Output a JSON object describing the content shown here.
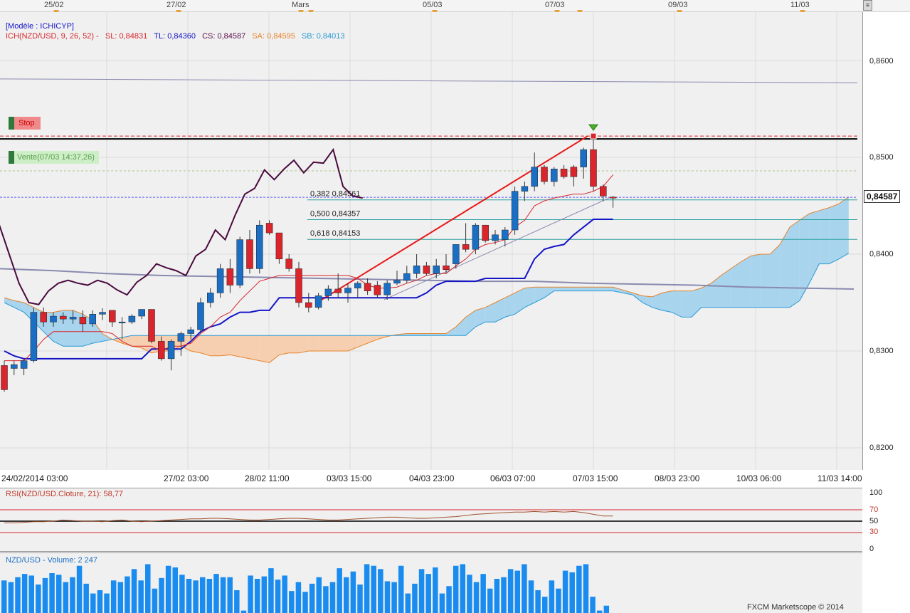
{
  "top_dates": [
    "25/02",
    "27/02",
    "Mars",
    "05/03",
    "07/03",
    "09/03",
    "11/03"
  ],
  "chart_header": {
    "model": "[Modèle : ICHICYP]",
    "ich": "ICH(NZD/USD, 9, 26, 52) -",
    "sl": "SL: 0,84831",
    "tl": "TL: 0,84360",
    "cs": "CS: 0,84587",
    "sa": "SA: 0,84595",
    "sb": "SB: 0,84013"
  },
  "order_labels": {
    "stop": "Stop",
    "sell": "Vente(07/03 14:37,26)"
  },
  "fib_labels": [
    "0,382 0,84561",
    "0,500 0,84357",
    "0,618 0,84153"
  ],
  "price_axis": [
    "0,8600",
    "0,8500",
    "0,8400",
    "0,8300",
    "0,8200"
  ],
  "current_price": "0,84587",
  "time_axis": [
    "24/02/2014 03:00",
    "27/02 03:00",
    "28/02 11:00",
    "03/03 15:00",
    "04/03 23:00",
    "06/03 07:00",
    "07/03 15:00",
    "08/03 23:00",
    "10/03 06:00",
    "11/03 14:00"
  ],
  "rsi_header": "RSI(NZD/USD.Cloture, 21): 58,77",
  "rsi_axis": [
    "100",
    "70",
    "50",
    "30",
    "0"
  ],
  "volume_header": "NZD/USD - Volume: 2 247",
  "footer": "FXCM Marketscope © 2014",
  "colors": {
    "bull": "#1a6fc4",
    "bear": "#d9252b",
    "tenkan": "#d9252b",
    "kijun": "#1515c8",
    "chikou": "#4a0a3e",
    "cloud": "#a8d4ee",
    "cloud_bear": "#f5cfb0"
  },
  "chart_data": {
    "type": "candlestick",
    "symbol": "NZD/USD",
    "ylim": [
      0.819,
      0.8625
    ],
    "candles": [
      {
        "o": 0.8285,
        "h": 0.829,
        "l": 0.8258,
        "c": 0.826
      },
      {
        "o": 0.8282,
        "h": 0.829,
        "l": 0.8275,
        "c": 0.8286
      },
      {
        "o": 0.8282,
        "h": 0.8292,
        "l": 0.8275,
        "c": 0.829
      },
      {
        "o": 0.829,
        "h": 0.8345,
        "l": 0.8288,
        "c": 0.834
      },
      {
        "o": 0.834,
        "h": 0.8345,
        "l": 0.8325,
        "c": 0.833
      },
      {
        "o": 0.833,
        "h": 0.834,
        "l": 0.8325,
        "c": 0.8336
      },
      {
        "o": 0.8336,
        "h": 0.834,
        "l": 0.8328,
        "c": 0.8333
      },
      {
        "o": 0.8333,
        "h": 0.8342,
        "l": 0.8328,
        "c": 0.8335
      },
      {
        "o": 0.8335,
        "h": 0.8342,
        "l": 0.832,
        "c": 0.8328
      },
      {
        "o": 0.8328,
        "h": 0.8342,
        "l": 0.8325,
        "c": 0.8338
      },
      {
        "o": 0.8338,
        "h": 0.8344,
        "l": 0.8332,
        "c": 0.834
      },
      {
        "o": 0.8342,
        "h": 0.8342,
        "l": 0.8325,
        "c": 0.833
      },
      {
        "o": 0.833,
        "h": 0.8335,
        "l": 0.8312,
        "c": 0.833
      },
      {
        "o": 0.833,
        "h": 0.8338,
        "l": 0.8328,
        "c": 0.8336
      },
      {
        "o": 0.8336,
        "h": 0.8343,
        "l": 0.8333,
        "c": 0.8343
      },
      {
        "o": 0.8343,
        "h": 0.8343,
        "l": 0.8308,
        "c": 0.831
      },
      {
        "o": 0.831,
        "h": 0.8315,
        "l": 0.829,
        "c": 0.8292
      },
      {
        "o": 0.8292,
        "h": 0.8312,
        "l": 0.828,
        "c": 0.831
      },
      {
        "o": 0.831,
        "h": 0.832,
        "l": 0.8295,
        "c": 0.8318
      },
      {
        "o": 0.8318,
        "h": 0.8325,
        "l": 0.8312,
        "c": 0.8322
      },
      {
        "o": 0.8322,
        "h": 0.8355,
        "l": 0.8318,
        "c": 0.835
      },
      {
        "o": 0.835,
        "h": 0.8365,
        "l": 0.8345,
        "c": 0.836
      },
      {
        "o": 0.836,
        "h": 0.839,
        "l": 0.8355,
        "c": 0.8385
      },
      {
        "o": 0.8385,
        "h": 0.8395,
        "l": 0.836,
        "c": 0.8368
      },
      {
        "o": 0.8368,
        "h": 0.8418,
        "l": 0.8365,
        "c": 0.8415
      },
      {
        "o": 0.8415,
        "h": 0.8425,
        "l": 0.838,
        "c": 0.8385
      },
      {
        "o": 0.8385,
        "h": 0.8435,
        "l": 0.838,
        "c": 0.843
      },
      {
        "o": 0.8432,
        "h": 0.8435,
        "l": 0.842,
        "c": 0.8422
      },
      {
        "o": 0.8422,
        "h": 0.8422,
        "l": 0.839,
        "c": 0.8395
      },
      {
        "o": 0.8395,
        "h": 0.84,
        "l": 0.8382,
        "c": 0.8385
      },
      {
        "o": 0.8385,
        "h": 0.8392,
        "l": 0.8345,
        "c": 0.835
      },
      {
        "o": 0.835,
        "h": 0.836,
        "l": 0.834,
        "c": 0.8345
      },
      {
        "o": 0.8345,
        "h": 0.836,
        "l": 0.8343,
        "c": 0.8357
      },
      {
        "o": 0.8357,
        "h": 0.8368,
        "l": 0.8352,
        "c": 0.8364
      },
      {
        "o": 0.8364,
        "h": 0.838,
        "l": 0.8355,
        "c": 0.836
      },
      {
        "o": 0.836,
        "h": 0.837,
        "l": 0.835,
        "c": 0.8365
      },
      {
        "o": 0.8365,
        "h": 0.8372,
        "l": 0.8355,
        "c": 0.837
      },
      {
        "o": 0.837,
        "h": 0.8375,
        "l": 0.8358,
        "c": 0.8362
      },
      {
        "o": 0.8368,
        "h": 0.8372,
        "l": 0.8355,
        "c": 0.8358
      },
      {
        "o": 0.8358,
        "h": 0.8373,
        "l": 0.8353,
        "c": 0.837
      },
      {
        "o": 0.837,
        "h": 0.8383,
        "l": 0.8368,
        "c": 0.8373
      },
      {
        "o": 0.8373,
        "h": 0.8388,
        "l": 0.837,
        "c": 0.838
      },
      {
        "o": 0.838,
        "h": 0.84,
        "l": 0.8375,
        "c": 0.8388
      },
      {
        "o": 0.8388,
        "h": 0.8392,
        "l": 0.8378,
        "c": 0.838
      },
      {
        "o": 0.838,
        "h": 0.8395,
        "l": 0.8375,
        "c": 0.8388
      },
      {
        "o": 0.8388,
        "h": 0.84,
        "l": 0.838,
        "c": 0.8384
      },
      {
        "o": 0.839,
        "h": 0.841,
        "l": 0.8385,
        "c": 0.841
      },
      {
        "o": 0.841,
        "h": 0.8432,
        "l": 0.8402,
        "c": 0.8405
      },
      {
        "o": 0.8405,
        "h": 0.8432,
        "l": 0.84,
        "c": 0.843
      },
      {
        "o": 0.843,
        "h": 0.843,
        "l": 0.8412,
        "c": 0.8414
      },
      {
        "o": 0.8414,
        "h": 0.8425,
        "l": 0.841,
        "c": 0.842
      },
      {
        "o": 0.8415,
        "h": 0.8428,
        "l": 0.8408,
        "c": 0.8425
      },
      {
        "o": 0.8425,
        "h": 0.847,
        "l": 0.842,
        "c": 0.8465
      },
      {
        "o": 0.8465,
        "h": 0.8475,
        "l": 0.8455,
        "c": 0.847
      },
      {
        "o": 0.847,
        "h": 0.8505,
        "l": 0.8465,
        "c": 0.849
      },
      {
        "o": 0.849,
        "h": 0.8492,
        "l": 0.8472,
        "c": 0.8475
      },
      {
        "o": 0.8475,
        "h": 0.849,
        "l": 0.847,
        "c": 0.8488
      },
      {
        "o": 0.8488,
        "h": 0.8492,
        "l": 0.8478,
        "c": 0.848
      },
      {
        "o": 0.849,
        "h": 0.8492,
        "l": 0.847,
        "c": 0.848
      },
      {
        "o": 0.849,
        "h": 0.851,
        "l": 0.8478,
        "c": 0.8508
      },
      {
        "o": 0.8508,
        "h": 0.8522,
        "l": 0.8465,
        "c": 0.847
      },
      {
        "o": 0.847,
        "h": 0.8472,
        "l": 0.8455,
        "c": 0.846
      },
      {
        "o": 0.8459,
        "h": 0.846,
        "l": 0.8448,
        "c": 0.8458
      }
    ],
    "tenkan": [
      0.829,
      0.829,
      0.829,
      0.83,
      0.8312,
      0.832,
      0.832,
      0.832,
      0.832,
      0.832,
      0.832,
      0.8318,
      0.831,
      0.8305,
      0.8305,
      0.8305,
      0.83,
      0.8305,
      0.8305,
      0.8308,
      0.8318,
      0.8325,
      0.8335,
      0.834,
      0.8352,
      0.8362,
      0.8372,
      0.8375,
      0.8378,
      0.8378,
      0.8378,
      0.8378,
      0.8378,
      0.8378,
      0.8378,
      0.8378,
      0.8375,
      0.8368,
      0.8365,
      0.8365,
      0.8366,
      0.837,
      0.8373,
      0.8378,
      0.838,
      0.838,
      0.8388,
      0.8395,
      0.8405,
      0.841,
      0.8412,
      0.8415,
      0.8428,
      0.8435,
      0.845,
      0.8455,
      0.8458,
      0.846,
      0.8462,
      0.8462,
      0.8465,
      0.847,
      0.8482
    ],
    "kijun": [
      0.83,
      0.8295,
      0.8292,
      0.8292,
      0.8292,
      0.8292,
      0.8292,
      0.8292,
      0.8292,
      0.8292,
      0.8292,
      0.8292,
      0.8292,
      0.8292,
      0.8292,
      0.8302,
      0.8302,
      0.8302,
      0.8302,
      0.831,
      0.832,
      0.8325,
      0.8328,
      0.8335,
      0.834,
      0.834,
      0.8342,
      0.8342,
      0.8355,
      0.8355,
      0.8355,
      0.8355,
      0.8355,
      0.8355,
      0.8355,
      0.8355,
      0.8355,
      0.8355,
      0.8355,
      0.8355,
      0.8355,
      0.8355,
      0.8355,
      0.836,
      0.8368,
      0.8372,
      0.8372,
      0.8372,
      0.8372,
      0.8375,
      0.8375,
      0.8375,
      0.8375,
      0.8375,
      0.8395,
      0.8405,
      0.8408,
      0.841,
      0.842,
      0.8428,
      0.8436,
      0.8436,
      0.8436
    ],
    "chikou": [
      0.843,
      0.84,
      0.837,
      0.835,
      0.8348,
      0.8362,
      0.837,
      0.8373,
      0.837,
      0.8368,
      0.8373,
      0.837,
      0.8363,
      0.8358,
      0.8371,
      0.8378,
      0.839,
      0.8386,
      0.8383,
      0.8378,
      0.8398,
      0.8405,
      0.8425,
      0.8415,
      0.844,
      0.8462,
      0.8468,
      0.8487,
      0.8477,
      0.8488,
      0.8497,
      0.8484,
      0.8495,
      0.8494,
      0.8508,
      0.847,
      0.846,
      0.8458
    ],
    "senkou_a": [
      0.8355,
      0.8352,
      0.835,
      0.8345,
      0.834,
      0.834,
      0.8342,
      0.8342,
      0.8338,
      0.8332,
      0.8318,
      0.8312,
      0.8308,
      0.8305,
      0.8303,
      0.8298,
      0.83,
      0.83,
      0.8305,
      0.83,
      0.8298,
      0.8295,
      0.8295,
      0.8296,
      0.8294,
      0.8292,
      0.829,
      0.8288,
      0.8296,
      0.8298,
      0.8298,
      0.83,
      0.83,
      0.83,
      0.83,
      0.83,
      0.8304,
      0.8308,
      0.8312,
      0.8315,
      0.8317,
      0.8318,
      0.8318,
      0.8318,
      0.8318,
      0.8318,
      0.8325,
      0.8335,
      0.8342,
      0.8345,
      0.835,
      0.8355,
      0.836,
      0.8365,
      0.8366,
      0.8366,
      0.8366,
      0.8366,
      0.8366,
      0.8366,
      0.8366,
      0.8366,
      0.8366,
      0.8363,
      0.836,
      0.8357,
      0.8356,
      0.836,
      0.8362,
      0.8362,
      0.8362,
      0.8365,
      0.837,
      0.8378,
      0.8385,
      0.8392,
      0.8398,
      0.84,
      0.84,
      0.841,
      0.8428,
      0.8435,
      0.8442,
      0.8445,
      0.8448,
      0.8452,
      0.8459
    ],
    "senkou_b": [
      0.835,
      0.8345,
      0.834,
      0.833,
      0.832,
      0.831,
      0.8305,
      0.8305,
      0.8305,
      0.8308,
      0.831,
      0.8312,
      0.8314,
      0.8316,
      0.8316,
      0.8316,
      0.8316,
      0.8316,
      0.8316,
      0.8316,
      0.8316,
      0.8316,
      0.8316,
      0.8316,
      0.8316,
      0.8316,
      0.8316,
      0.8316,
      0.8316,
      0.8316,
      0.8316,
      0.8316,
      0.8316,
      0.8316,
      0.8316,
      0.8316,
      0.8316,
      0.8316,
      0.8316,
      0.8316,
      0.8316,
      0.8316,
      0.8316,
      0.8316,
      0.8316,
      0.8316,
      0.8316,
      0.8316,
      0.8325,
      0.833,
      0.833,
      0.8335,
      0.8338,
      0.8345,
      0.835,
      0.8355,
      0.8362,
      0.8362,
      0.8362,
      0.8362,
      0.8362,
      0.8362,
      0.8362,
      0.836,
      0.8358,
      0.835,
      0.8345,
      0.8342,
      0.834,
      0.8335,
      0.8335,
      0.8345,
      0.8345,
      0.8345,
      0.8345,
      0.8345,
      0.8345,
      0.8345,
      0.8345,
      0.8345,
      0.8345,
      0.8352,
      0.837,
      0.839,
      0.839,
      0.8395,
      0.8401
    ],
    "ma_line_a": [
      0.8385,
      0.8383,
      0.838,
      0.8378,
      0.8377,
      0.8376,
      0.8375,
      0.8374,
      0.8373,
      0.8372,
      0.8372,
      0.837,
      0.8369,
      0.8368,
      0.8366,
      0.8365,
      0.8364
    ],
    "stop_level": 0.8522,
    "sell_level": 0.8486,
    "entry_level": 0.8519,
    "fib_levels": [
      0.84561,
      0.84357,
      0.84153
    ],
    "rsi": [
      47,
      47,
      48,
      49,
      49,
      50,
      52,
      51,
      50,
      50,
      49,
      51,
      52,
      50,
      49,
      50,
      51,
      52,
      53,
      54,
      54,
      55,
      55,
      54,
      53,
      52,
      52,
      53,
      54,
      55,
      55,
      54,
      53,
      52,
      52,
      53,
      54,
      55,
      56,
      57,
      57,
      56,
      55,
      55,
      56,
      57,
      58,
      60,
      62,
      63,
      64,
      65,
      66,
      66,
      67,
      66,
      67,
      66,
      67,
      65,
      62,
      59,
      59
    ],
    "volume": [
      40,
      38,
      44,
      48,
      46,
      35,
      43,
      49,
      47,
      38,
      44,
      58,
      36,
      24,
      28,
      24,
      40,
      38,
      45,
      54,
      40,
      60,
      30,
      43,
      58,
      56,
      47,
      42,
      40,
      44,
      42,
      48,
      44,
      44,
      28,
      3,
      46,
      42,
      45,
      55,
      41,
      46,
      27,
      38,
      26,
      36,
      44,
      33,
      38,
      55,
      44,
      51,
      35,
      60,
      58,
      54,
      39,
      38,
      58,
      24,
      36,
      54,
      48,
      56,
      24,
      33,
      58,
      60,
      47,
      38,
      48,
      30,
      42,
      44,
      54,
      52,
      60,
      40,
      28,
      20,
      40,
      30,
      52,
      50,
      58,
      60,
      20,
      3,
      9
    ],
    "volume_max": 70
  }
}
